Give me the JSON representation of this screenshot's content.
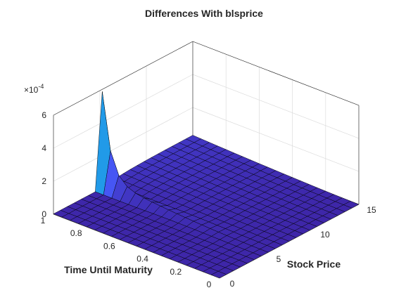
{
  "chart_data": {
    "type": "surface",
    "title": "Differences With blsprice",
    "xlabel": "Stock Price",
    "ylabel": "Time Until Maturity",
    "zlabel": "",
    "xlim": [
      0,
      15
    ],
    "ylim": [
      0,
      1
    ],
    "zlim": [
      0,
      0.0006
    ],
    "z_exponent_label": "×10",
    "z_exponent_value": "-4",
    "x_ticks": [
      "0",
      "5",
      "10",
      "15"
    ],
    "y_ticks": [
      "0",
      "0.2",
      "0.4",
      "0.6",
      "0.8",
      "1"
    ],
    "z_ticks": [
      "0",
      "2",
      "4",
      "6"
    ],
    "z_tick_values": [
      0,
      0.0002,
      0.0004,
      0.0006
    ],
    "colormap": "parula",
    "grid": true,
    "box": true,
    "surface": {
      "x_start": 0,
      "x_end": 15,
      "x_count": 21,
      "y_start": 0,
      "y_end": 1,
      "y_count": 21,
      "shape": "ridge along y = 1 near strike, peak ≈ 5.2e-4 at stock price ≈ 5.25"
    }
  }
}
